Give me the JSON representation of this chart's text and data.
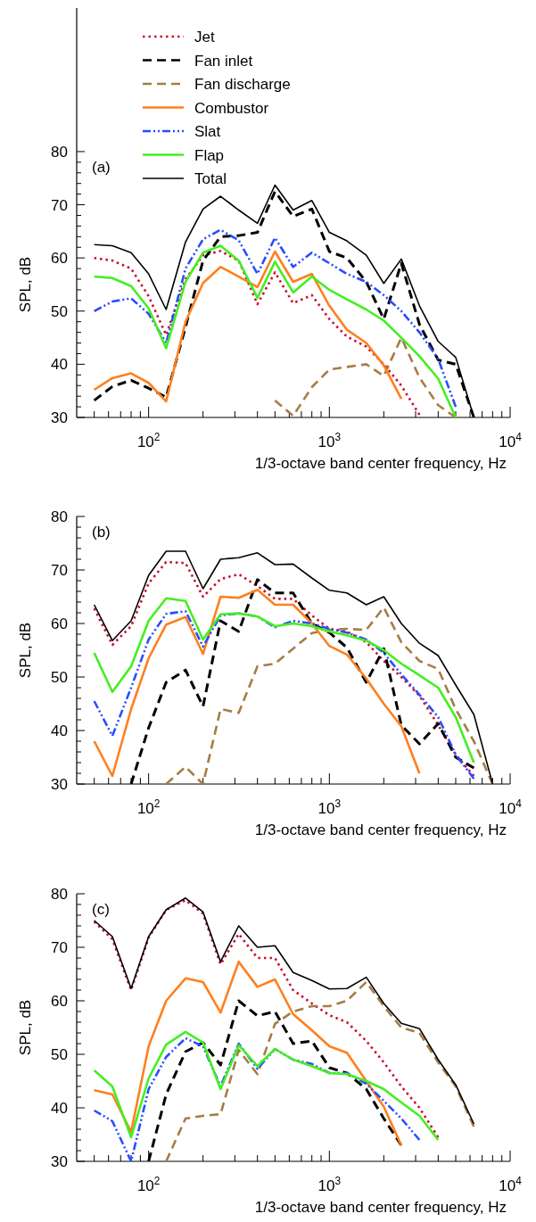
{
  "chart_data": [
    {
      "type": "line",
      "xlabel": "1/3-octave band center frequency, Hz",
      "ylabel": "SPL, dB",
      "annotations": [
        "(a)"
      ],
      "log": "x",
      "legend": "top left",
      "xlim": [
        40,
        10000
      ],
      "ylim": [
        30,
        107
      ],
      "xticks": [
        {
          "value": 50,
          "label": null
        },
        {
          "value": 60,
          "label": null
        },
        {
          "value": 70,
          "label": null
        },
        {
          "value": 80,
          "label": null
        },
        {
          "value": 90,
          "label": null
        },
        {
          "value": 100,
          "label": "10$^{2}$"
        },
        {
          "value": 200,
          "label": null
        },
        {
          "value": 300,
          "label": null
        },
        {
          "value": 400,
          "label": null
        },
        {
          "value": 500,
          "label": null
        },
        {
          "value": 600,
          "label": null
        },
        {
          "value": 700,
          "label": null
        },
        {
          "value": 800,
          "label": null
        },
        {
          "value": 900,
          "label": null
        },
        {
          "value": 1000,
          "label": "10$^{3}$"
        },
        {
          "value": 2000,
          "label": null
        },
        {
          "value": 3000,
          "label": null
        },
        {
          "value": 4000,
          "label": null
        },
        {
          "value": 5000,
          "label": null
        },
        {
          "value": 6000,
          "label": null
        },
        {
          "value": 7000,
          "label": null
        },
        {
          "value": 8000,
          "label": null
        },
        {
          "value": 9000,
          "label": null
        },
        {
          "value": 10000,
          "label": "10$^{4}$"
        }
      ],
      "yticks": [
        30,
        {
          "value": 32,
          "label": null
        },
        {
          "value": 34,
          "label": null
        },
        {
          "value": 36,
          "label": null
        },
        {
          "value": 38,
          "label": null
        },
        40,
        {
          "value": 42,
          "label": null
        },
        {
          "value": 44,
          "label": null
        },
        {
          "value": 46,
          "label": null
        },
        {
          "value": 48,
          "label": null
        },
        50,
        {
          "value": 52,
          "label": null
        },
        {
          "value": 54,
          "label": null
        },
        {
          "value": 56,
          "label": null
        },
        {
          "value": 58,
          "label": null
        },
        60,
        {
          "value": 62,
          "label": null
        },
        {
          "value": 64,
          "label": null
        },
        {
          "value": 66,
          "label": null
        },
        {
          "value": 68,
          "label": null
        },
        70,
        {
          "value": 72,
          "label": null
        },
        {
          "value": 74,
          "label": null
        },
        {
          "value": 76,
          "label": null
        },
        {
          "value": 78,
          "label": null
        },
        80
      ],
      "x": [
        50,
        63,
        80,
        100,
        125,
        160,
        200,
        250,
        315,
        400,
        500,
        630,
        800,
        1000,
        1250,
        1600,
        2000,
        2500,
        3150,
        4000,
        5000,
        6300
      ],
      "series": [
        {
          "name": "Jet",
          "color": "#c8102e",
          "line_style": "dotted",
          "values": [
            60,
            59.5,
            58,
            52.8,
            45.5,
            56,
            60.5,
            61.3,
            59.5,
            51.3,
            57.3,
            51.5,
            53,
            48.5,
            45.2,
            43.3,
            40,
            36,
            30.5,
            null,
            null,
            null
          ]
        },
        {
          "name": "Fan inlet",
          "color": "#000000",
          "line_style": "dashed",
          "values": [
            33.2,
            35.8,
            37,
            35.5,
            33.8,
            47,
            59.5,
            64,
            64.2,
            64.8,
            72.5,
            67.8,
            69.2,
            61.2,
            60,
            55.5,
            48.5,
            59,
            47.5,
            40.8,
            40,
            30
          ]
        },
        {
          "name": "Fan discharge",
          "color": "#a67c46",
          "line_style": "dashed",
          "values": [
            null,
            null,
            null,
            null,
            null,
            null,
            null,
            null,
            null,
            null,
            33.2,
            30.3,
            35.7,
            39,
            39.5,
            40,
            37.8,
            45,
            37.5,
            32.3,
            30,
            null
          ]
        },
        {
          "name": "Combustor",
          "color": "#ff7f1e",
          "line_style": "solid",
          "values": [
            35.2,
            37.4,
            38.3,
            36.5,
            33,
            48,
            55.3,
            58.3,
            56.5,
            54.5,
            61.2,
            55.5,
            57,
            51,
            46.5,
            44,
            39.8,
            33.5,
            null,
            null,
            null,
            null
          ]
        },
        {
          "name": "Slat",
          "color": "#2a4dff",
          "line_style": "dashdot",
          "values": [
            50,
            51.8,
            52.4,
            49.5,
            44,
            58,
            63.5,
            65.3,
            63.3,
            57,
            63.8,
            58.3,
            61,
            59,
            57,
            55.5,
            53,
            50,
            46,
            41,
            32,
            null
          ]
        },
        {
          "name": "Flap",
          "color": "#44ee22",
          "line_style": "solid",
          "values": [
            56.5,
            56.2,
            54.7,
            50.5,
            43,
            55.5,
            61,
            62.3,
            59.5,
            52.5,
            59.3,
            53.5,
            56.5,
            54,
            52.2,
            50.3,
            48.2,
            45,
            41.5,
            37.3,
            30,
            null
          ]
        },
        {
          "name": "Total",
          "color": "#000000",
          "line_style": "solid",
          "values": [
            62.5,
            62.3,
            61,
            57,
            50.3,
            63,
            69.2,
            71.6,
            69,
            66.5,
            73.7,
            69,
            70.8,
            64.8,
            63.2,
            60.5,
            55.2,
            59.8,
            51,
            44.3,
            41.3,
            30
          ]
        }
      ]
    },
    {
      "type": "line",
      "xlabel": "1/3-octave band center frequency, Hz",
      "ylabel": "SPL, dB",
      "annotations": [
        "(b)"
      ],
      "log": "x",
      "xlim": [
        40,
        10000
      ],
      "ylim": [
        30,
        80
      ],
      "xticks": [
        {
          "value": 50,
          "label": null
        },
        {
          "value": 60,
          "label": null
        },
        {
          "value": 70,
          "label": null
        },
        {
          "value": 80,
          "label": null
        },
        {
          "value": 90,
          "label": null
        },
        {
          "value": 100,
          "label": "10$^{2}$"
        },
        {
          "value": 200,
          "label": null
        },
        {
          "value": 300,
          "label": null
        },
        {
          "value": 400,
          "label": null
        },
        {
          "value": 500,
          "label": null
        },
        {
          "value": 600,
          "label": null
        },
        {
          "value": 700,
          "label": null
        },
        {
          "value": 800,
          "label": null
        },
        {
          "value": 900,
          "label": null
        },
        {
          "value": 1000,
          "label": "10$^{3}$"
        },
        {
          "value": 2000,
          "label": null
        },
        {
          "value": 3000,
          "label": null
        },
        {
          "value": 4000,
          "label": null
        },
        {
          "value": 5000,
          "label": null
        },
        {
          "value": 6000,
          "label": null
        },
        {
          "value": 7000,
          "label": null
        },
        {
          "value": 8000,
          "label": null
        },
        {
          "value": 9000,
          "label": null
        },
        {
          "value": 10000,
          "label": "10$^{4}$"
        }
      ],
      "yticks": [
        30,
        {
          "value": 32,
          "label": null
        },
        {
          "value": 34,
          "label": null
        },
        {
          "value": 36,
          "label": null
        },
        {
          "value": 38,
          "label": null
        },
        40,
        {
          "value": 42,
          "label": null
        },
        {
          "value": 44,
          "label": null
        },
        {
          "value": 46,
          "label": null
        },
        {
          "value": 48,
          "label": null
        },
        50,
        {
          "value": 52,
          "label": null
        },
        {
          "value": 54,
          "label": null
        },
        {
          "value": 56,
          "label": null
        },
        {
          "value": 58,
          "label": null
        },
        60,
        {
          "value": 62,
          "label": null
        },
        {
          "value": 64,
          "label": null
        },
        {
          "value": 66,
          "label": null
        },
        {
          "value": 68,
          "label": null
        },
        70,
        {
          "value": 72,
          "label": null
        },
        {
          "value": 74,
          "label": null
        },
        {
          "value": 76,
          "label": null
        },
        {
          "value": 78,
          "label": null
        },
        80
      ],
      "x": [
        50,
        63,
        80,
        100,
        125,
        160,
        200,
        250,
        315,
        400,
        500,
        630,
        800,
        1000,
        1250,
        1600,
        2000,
        2500,
        3150,
        4000,
        5000,
        6300,
        8000
      ],
      "series": [
        {
          "color": "#c8102e",
          "line_style": "dotted",
          "values": [
            62.8,
            56,
            59.5,
            67.5,
            71.5,
            71.3,
            65,
            68.3,
            69.2,
            67,
            64.6,
            64.6,
            61.5,
            59,
            58.5,
            56.5,
            53,
            50,
            46.5,
            41,
            35.5,
            31.5,
            null
          ]
        },
        {
          "color": "#000000",
          "line_style": "dashed",
          "values": [
            null,
            null,
            30,
            40.5,
            49,
            51.3,
            44.5,
            60.5,
            58.5,
            68.2,
            65.7,
            65.7,
            60,
            58.3,
            55.5,
            49,
            55.3,
            41,
            37.5,
            41.3,
            35,
            33,
            null
          ]
        },
        {
          "color": "#a67c46",
          "line_style": "dashed",
          "values": [
            null,
            null,
            null,
            null,
            30,
            33.2,
            30,
            44,
            43.3,
            52,
            52.5,
            55.3,
            58.2,
            58.8,
            59,
            58.8,
            63,
            56.5,
            53,
            51.5,
            44,
            38,
            30
          ]
        },
        {
          "color": "#ff7f1e",
          "line_style": "solid",
          "values": [
            38,
            31.5,
            44,
            53.5,
            59.8,
            61.2,
            54.3,
            65,
            64.8,
            66.3,
            63.5,
            63.5,
            60,
            55.8,
            54.2,
            49.7,
            45,
            40.8,
            32,
            null,
            null,
            null,
            null
          ]
        },
        {
          "color": "#2a4dff",
          "line_style": "dashdot",
          "values": [
            45.5,
            39,
            48,
            57,
            61.8,
            62.3,
            55.7,
            61.5,
            61.9,
            61.3,
            59.3,
            60.5,
            60,
            59,
            58.3,
            57,
            54.5,
            50.5,
            46.7,
            42.5,
            35.5,
            31,
            null
          ]
        },
        {
          "color": "#44ee22",
          "line_style": "solid",
          "values": [
            54.5,
            47.2,
            52,
            60.5,
            64.7,
            64.2,
            57,
            61.7,
            61.9,
            61.3,
            59.5,
            60,
            59.5,
            58.5,
            57.8,
            56.8,
            55,
            52.5,
            50.3,
            48,
            42.5,
            34,
            null
          ]
        },
        {
          "color": "#000000",
          "line_style": "solid",
          "values": [
            63.5,
            56.8,
            60.5,
            69,
            73.5,
            73.5,
            66.5,
            72,
            72.3,
            73.2,
            71,
            71.1,
            68.5,
            66.2,
            65.7,
            63.5,
            65,
            60,
            56.3,
            54,
            48.5,
            43,
            30
          ]
        }
      ]
    },
    {
      "type": "line",
      "xlabel": "1/3-octave band center frequency, Hz",
      "ylabel": "SPL, dB",
      "annotations": [
        "(c)"
      ],
      "log": "x",
      "xlim": [
        40,
        10000
      ],
      "ylim": [
        30,
        80
      ],
      "xticks": [
        {
          "value": 50,
          "label": null
        },
        {
          "value": 60,
          "label": null
        },
        {
          "value": 70,
          "label": null
        },
        {
          "value": 80,
          "label": null
        },
        {
          "value": 90,
          "label": null
        },
        {
          "value": 100,
          "label": "10$^{2}$"
        },
        {
          "value": 200,
          "label": null
        },
        {
          "value": 300,
          "label": null
        },
        {
          "value": 400,
          "label": null
        },
        {
          "value": 500,
          "label": null
        },
        {
          "value": 600,
          "label": null
        },
        {
          "value": 700,
          "label": null
        },
        {
          "value": 800,
          "label": null
        },
        {
          "value": 900,
          "label": null
        },
        {
          "value": 1000,
          "label": "10$^{3}$"
        },
        {
          "value": 2000,
          "label": null
        },
        {
          "value": 3000,
          "label": null
        },
        {
          "value": 4000,
          "label": null
        },
        {
          "value": 5000,
          "label": null
        },
        {
          "value": 6000,
          "label": null
        },
        {
          "value": 7000,
          "label": null
        },
        {
          "value": 8000,
          "label": null
        },
        {
          "value": 9000,
          "label": null
        },
        {
          "value": 10000,
          "label": "10$^{4}$"
        }
      ],
      "yticks": [
        30,
        {
          "value": 32,
          "label": null
        },
        {
          "value": 34,
          "label": null
        },
        {
          "value": 36,
          "label": null
        },
        {
          "value": 38,
          "label": null
        },
        40,
        {
          "value": 42,
          "label": null
        },
        {
          "value": 44,
          "label": null
        },
        {
          "value": 46,
          "label": null
        },
        {
          "value": 48,
          "label": null
        },
        50,
        {
          "value": 52,
          "label": null
        },
        {
          "value": 54,
          "label": null
        },
        {
          "value": 56,
          "label": null
        },
        {
          "value": 58,
          "label": null
        },
        60,
        {
          "value": 62,
          "label": null
        },
        {
          "value": 64,
          "label": null
        },
        {
          "value": 66,
          "label": null
        },
        {
          "value": 68,
          "label": null
        },
        70,
        {
          "value": 72,
          "label": null
        },
        {
          "value": 74,
          "label": null
        },
        {
          "value": 76,
          "label": null
        },
        {
          "value": 78,
          "label": null
        },
        80
      ],
      "x": [
        50,
        63,
        80,
        100,
        125,
        160,
        200,
        250,
        315,
        400,
        500,
        630,
        800,
        1000,
        1250,
        1600,
        2000,
        2500,
        3150,
        4000,
        5000,
        6300
      ],
      "series": [
        {
          "color": "#c8102e",
          "line_style": "dotted",
          "values": [
            74.8,
            71.5,
            62,
            71.8,
            77,
            78.8,
            76.3,
            66.8,
            72.5,
            68,
            68,
            62,
            59.5,
            57.3,
            56,
            52.5,
            48.5,
            44,
            40,
            34.5,
            null,
            null
          ]
        },
        {
          "color": "#000000",
          "line_style": "dashed",
          "values": [
            null,
            null,
            null,
            30,
            42.5,
            50.5,
            52.2,
            48,
            60,
            57.2,
            58,
            52,
            52.5,
            47.5,
            46.5,
            43.5,
            38,
            33,
            null,
            null,
            null,
            null
          ]
        },
        {
          "color": "#a67c46",
          "line_style": "dashed",
          "values": [
            null,
            null,
            null,
            null,
            30,
            38,
            38.5,
            38.8,
            50.8,
            46.3,
            55.7,
            58,
            59,
            59,
            60,
            63.5,
            59,
            55,
            54,
            48.5,
            44,
            36.5
          ]
        },
        {
          "color": "#ff7f1e",
          "line_style": "solid",
          "values": [
            43.3,
            42.5,
            35.5,
            51.5,
            60,
            64.2,
            63.5,
            57.8,
            67.3,
            62.6,
            64,
            57.5,
            54.5,
            51.5,
            50.3,
            45,
            40.2,
            33,
            null,
            null,
            null,
            null
          ]
        },
        {
          "color": "#2a4dff",
          "line_style": "dashdot",
          "values": [
            39.5,
            37.5,
            30,
            43.5,
            49.5,
            53,
            51.5,
            44,
            52,
            47.3,
            51,
            49,
            48.2,
            46.5,
            46.5,
            44.5,
            41.3,
            38,
            34,
            null,
            null,
            null
          ]
        },
        {
          "color": "#44ee22",
          "line_style": "solid",
          "values": [
            47,
            44,
            34.5,
            45.5,
            51.8,
            54.2,
            52.2,
            43.5,
            51.7,
            47.8,
            51,
            49,
            47.8,
            46.5,
            46.3,
            45,
            43.5,
            41,
            38.5,
            34,
            null,
            null
          ]
        },
        {
          "color": "#000000",
          "line_style": "solid",
          "values": [
            75,
            72,
            62.3,
            72,
            77,
            79.2,
            76.6,
            67.3,
            74,
            70,
            70.3,
            65.3,
            63.8,
            62.2,
            62.3,
            64.4,
            59.5,
            55.8,
            54.8,
            49,
            44.3,
            37
          ]
        }
      ]
    }
  ]
}
